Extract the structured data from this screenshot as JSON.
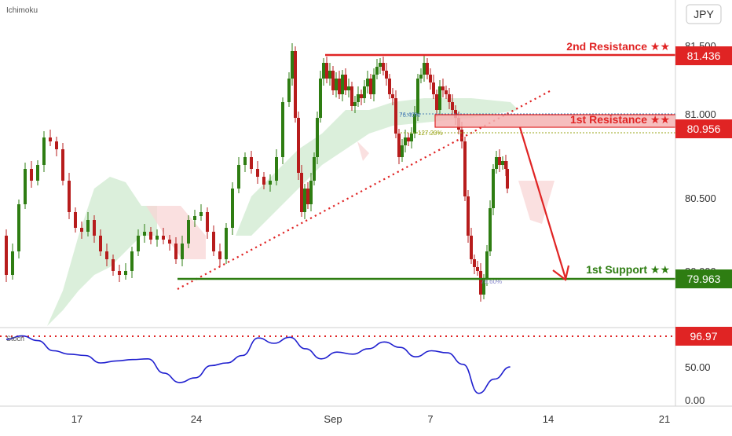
{
  "header": {
    "indicator_name": "Ichimoku",
    "currency": "JPY"
  },
  "colors": {
    "resistance": "#e02424",
    "support": "#2e7d12",
    "candle_up": "#2e7d12",
    "candle_down": "#b71c1c",
    "cloud_green": "#cfe9cf",
    "cloud_red": "#f8d5d5",
    "stoch": "#1f1fcf",
    "trendline": "#e02424",
    "fib_blue": "#4a7fb5",
    "fib_yellow": "#9aa51a"
  },
  "chart_data": [
    {
      "type": "candlestick",
      "title": "",
      "x_tick_labels": [
        "17",
        "24",
        "Sep",
        "7",
        "14",
        "21"
      ],
      "y_tick_labels": [
        "81.500",
        "81.000",
        "80.500",
        "80.000"
      ],
      "ylim": [
        79.85,
        81.66
      ],
      "levels": [
        {
          "name": "2nd Resistance",
          "label": "2nd Resistance ★★",
          "value": 81.436,
          "value_label": "81.436"
        },
        {
          "name": "1st Resistance",
          "label": "1st Resistance ★★",
          "value": 80.956,
          "value_label": "80.956"
        },
        {
          "name": "1st Support",
          "label": "1st Support ★★",
          "value": 79.963,
          "value_label": "79.963"
        }
      ],
      "fib_labels": {
        "fib_76": "76.40%",
        "fib_127": "127.20%",
        "fib_78": "78.60%"
      },
      "annotations": [
        "ascending trendline broken",
        "projected move down from 1st resistance to 1st support"
      ]
    },
    {
      "type": "line",
      "name": "Stoch",
      "ylim": [
        0,
        100
      ],
      "y_tick_labels": [
        "50.00",
        "0.00"
      ],
      "overbought_label": "96.97",
      "overbought": 96.97,
      "x": [
        0,
        5,
        10,
        15,
        20,
        25,
        30,
        35,
        40,
        45,
        50,
        55,
        60,
        65,
        70,
        75,
        80,
        85,
        90,
        95,
        100,
        105,
        110,
        115,
        120,
        125,
        130,
        135,
        140,
        145,
        150,
        155,
        160
      ],
      "values": [
        92,
        97,
        90,
        75,
        70,
        68,
        57,
        60,
        62,
        63,
        42,
        28,
        35,
        53,
        57,
        68,
        94,
        86,
        95,
        78,
        63,
        73,
        70,
        78,
        88,
        80,
        66,
        75,
        72,
        55,
        12,
        33,
        51
      ]
    }
  ]
}
